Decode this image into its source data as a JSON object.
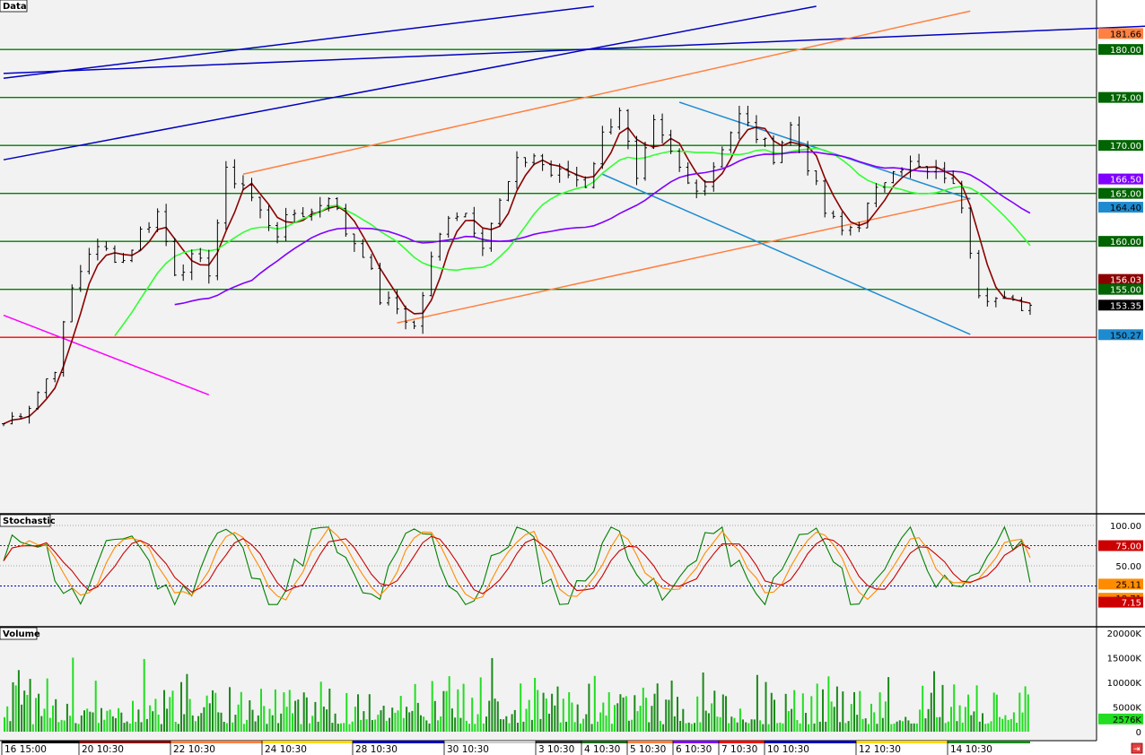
{
  "panels": {
    "price_label": "Data",
    "stochastic_label": "Stochastic",
    "volume_label": "Volume"
  },
  "colors": {
    "background": "#f2f2f2",
    "hline": "#008000",
    "support": "#ff0000",
    "orange": "#ff8040",
    "blue": "#0000c0",
    "cyan": "#1e8bd0",
    "magenta": "#ff00ff",
    "green_ma": "#33ff33",
    "red_ma": "#8b0000",
    "purple_ma": "#8000ff"
  },
  "x_labels": [
    "16 15:00",
    "20 10:30",
    "22 10:30",
    "24 10:30",
    "28 10:30",
    "30 10:30",
    "3 10:30",
    "4 10:30",
    "5 10:30",
    "6 10:30",
    "7 10:30",
    "10 10:30",
    "12 10:30",
    "14 10:30"
  ],
  "price_badges": [
    "181.66",
    "180.00",
    "175.00",
    "170.00",
    "166.50",
    "165.00",
    "164.40",
    "160.00",
    "156.03",
    "155.00",
    "153.35",
    "150.27"
  ],
  "stochastic_badges": [
    "75.00",
    "25.11",
    "18.71",
    "7.15"
  ],
  "stochastic_ticks": [
    "100.00",
    "50.00"
  ],
  "volume_ticks": [
    "20000K",
    "15000K",
    "10000K",
    "5000K",
    "0"
  ],
  "volume_badge": "2576K",
  "chart_data": [
    {
      "type": "candlestick",
      "title": "Data",
      "x": [
        "16 15:00",
        "20 10:30",
        "22 10:30",
        "24 10:30",
        "28 10:30",
        "30 10:30",
        "3 10:30",
        "4 10:30",
        "5 10:30",
        "6 10:30",
        "7 10:30",
        "10 10:30",
        "12 10:30",
        "14 10:30"
      ],
      "ylim": [
        138.5,
        184.5
      ],
      "horizontal_levels": [
        180,
        175,
        170,
        165,
        160,
        155,
        150
      ],
      "close_path": [
        [
          0,
          141
        ],
        [
          3,
          143
        ],
        [
          6,
          147
        ],
        [
          8,
          155
        ],
        [
          10,
          159
        ],
        [
          12,
          159
        ],
        [
          14,
          158
        ],
        [
          16,
          161
        ],
        [
          18,
          163
        ],
        [
          20,
          157
        ],
        [
          22,
          158
        ],
        [
          24,
          157
        ],
        [
          26,
          167
        ],
        [
          28,
          166
        ],
        [
          30,
          163
        ],
        [
          32,
          161
        ],
        [
          34,
          163
        ],
        [
          36,
          163
        ],
        [
          38,
          165
        ],
        [
          40,
          161
        ],
        [
          42,
          159
        ],
        [
          44,
          154
        ],
        [
          46,
          153
        ],
        [
          48,
          151
        ],
        [
          50,
          158
        ],
        [
          52,
          163
        ],
        [
          54,
          163
        ],
        [
          56,
          160
        ],
        [
          58,
          164
        ],
        [
          60,
          168
        ],
        [
          62,
          169
        ],
        [
          64,
          167
        ],
        [
          66,
          167
        ],
        [
          68,
          166
        ],
        [
          70,
          171
        ],
        [
          72,
          174
        ],
        [
          74,
          166
        ],
        [
          76,
          172
        ],
        [
          78,
          169
        ],
        [
          80,
          166
        ],
        [
          82,
          166
        ],
        [
          84,
          170
        ],
        [
          86,
          173
        ],
        [
          88,
          171
        ],
        [
          90,
          169
        ],
        [
          92,
          172
        ],
        [
          94,
          168
        ],
        [
          96,
          163
        ],
        [
          98,
          161
        ],
        [
          100,
          162
        ],
        [
          102,
          165
        ],
        [
          104,
          168
        ],
        [
          106,
          168
        ],
        [
          108,
          167
        ],
        [
          110,
          167
        ],
        [
          112,
          164
        ],
        [
          114,
          155
        ],
        [
          116,
          154
        ],
        [
          118,
          153.35
        ]
      ],
      "moving_averages": [
        {
          "color": "#8b0000",
          "last": 156.03
        },
        {
          "color": "#33ff33",
          "last": 165.0
        },
        {
          "color": "#8000ff",
          "last": 166.5
        }
      ],
      "last_price": 153.35
    },
    {
      "type": "line",
      "title": "Stochastic",
      "ylim": [
        0,
        100
      ],
      "levels": [
        75,
        25
      ],
      "last_values": [
        25.11,
        18.71,
        7.15
      ]
    },
    {
      "type": "bar",
      "title": "Volume",
      "ylim": [
        0,
        22000
      ],
      "unit": "K",
      "last": 2576
    }
  ]
}
